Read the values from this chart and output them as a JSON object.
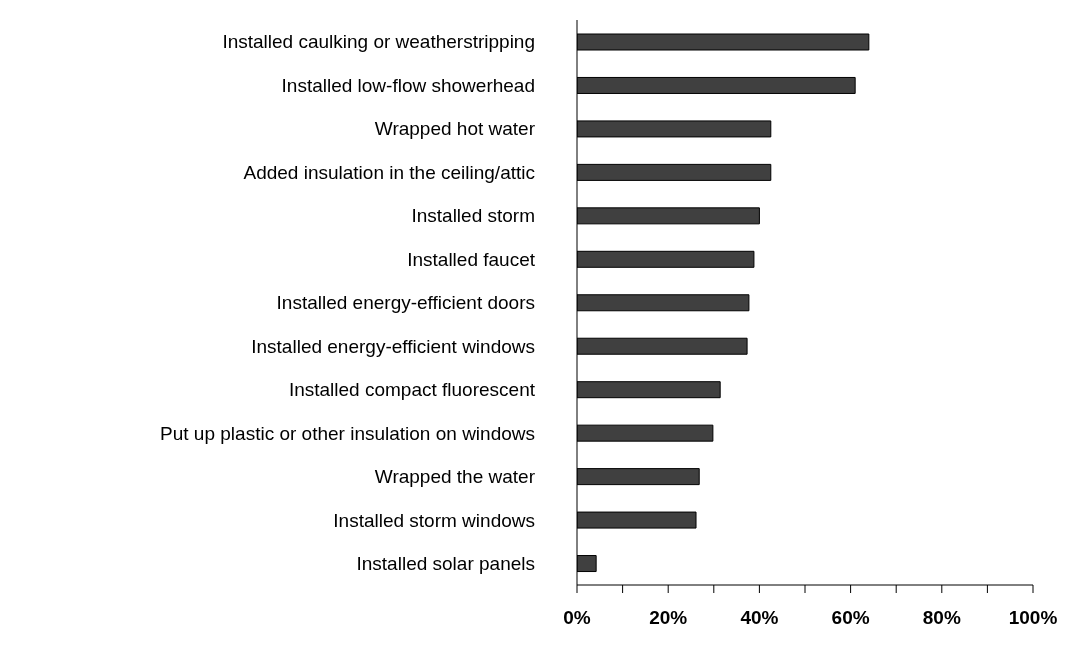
{
  "chart_data": {
    "type": "bar",
    "orientation": "horizontal",
    "categories": [
      "Installed caulking or weatherstripping",
      "Installed low-flow showerhead",
      "Wrapped hot water",
      "Added insulation in the ceiling/attic",
      "Installed storm",
      "Installed faucet",
      "Installed energy-efficient doors",
      "Installed energy-efficient windows",
      "Installed compact fluorescent",
      "Put up plastic or other insulation on windows",
      "Wrapped the water",
      "Installed storm windows",
      "Installed solar panels"
    ],
    "values": [
      64,
      61,
      42.5,
      42.5,
      40,
      38.8,
      37.7,
      37.3,
      31.4,
      29.8,
      26.8,
      26.1,
      4.2
    ],
    "color": "#404040",
    "xlim": [
      0,
      100
    ],
    "xticks": [
      {
        "value": 0,
        "label": "0%"
      },
      {
        "value": 10,
        "label": null
      },
      {
        "value": 20,
        "label": "20%"
      },
      {
        "value": 30,
        "label": null
      },
      {
        "value": 40,
        "label": "40%"
      },
      {
        "value": 50,
        "label": null
      },
      {
        "value": 60,
        "label": "60%"
      },
      {
        "value": 70,
        "label": null
      },
      {
        "value": 80,
        "label": "80%"
      },
      {
        "value": 90,
        "label": null
      },
      {
        "value": 100,
        "label": "100%"
      }
    ],
    "grid": false,
    "legend": false
  }
}
